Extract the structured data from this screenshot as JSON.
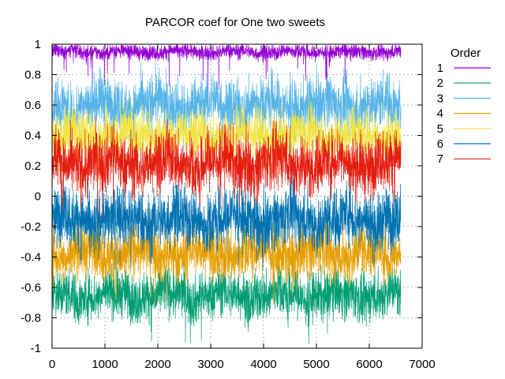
{
  "chart_data": {
    "type": "line",
    "title": "PARCOR coef for One two sweets",
    "xlabel": "",
    "ylabel": "",
    "xlim": [
      0,
      7000
    ],
    "ylim": [
      -1,
      1
    ],
    "x_ticks": [
      0,
      1000,
      2000,
      3000,
      4000,
      5000,
      6000,
      7000
    ],
    "y_ticks": [
      -1,
      -0.8,
      -0.6,
      -0.4,
      -0.2,
      0,
      0.2,
      0.4,
      0.6,
      0.8,
      1
    ],
    "x_tick_labels": [
      "0",
      "1000",
      "2000",
      "3000",
      "4000",
      "5000",
      "6000",
      "7000"
    ],
    "y_tick_labels": [
      "-1",
      "-0.8",
      "-0.6",
      "-0.4",
      "-0.2",
      "0",
      "0.2",
      "0.4",
      "0.6",
      "0.8",
      "1"
    ],
    "grid": true,
    "legend_title": "Order",
    "legend_position": "right",
    "sample_count": 6600,
    "series": [
      {
        "name": "1",
        "color": "#9400d3",
        "mean": 0.95,
        "spread": 0.025,
        "dip": 0.15
      },
      {
        "name": "2",
        "color": "#009e73",
        "mean": -0.65,
        "spread": 0.08,
        "dip": 0.15
      },
      {
        "name": "3",
        "color": "#56b4e9",
        "mean": 0.6,
        "spread": 0.09,
        "dip": 0.15
      },
      {
        "name": "4",
        "color": "#e69f00",
        "mean": -0.37,
        "spread": 0.09,
        "dip": 0.15
      },
      {
        "name": "5",
        "color": "#f0e442",
        "mean": 0.4,
        "spread": 0.08,
        "dip": 0.15
      },
      {
        "name": "6",
        "color": "#0072b2",
        "mean": -0.15,
        "spread": 0.1,
        "dip": 0.15
      },
      {
        "name": "7",
        "color": "#e51e10",
        "mean": 0.22,
        "spread": 0.1,
        "dip": 0.15
      }
    ]
  }
}
